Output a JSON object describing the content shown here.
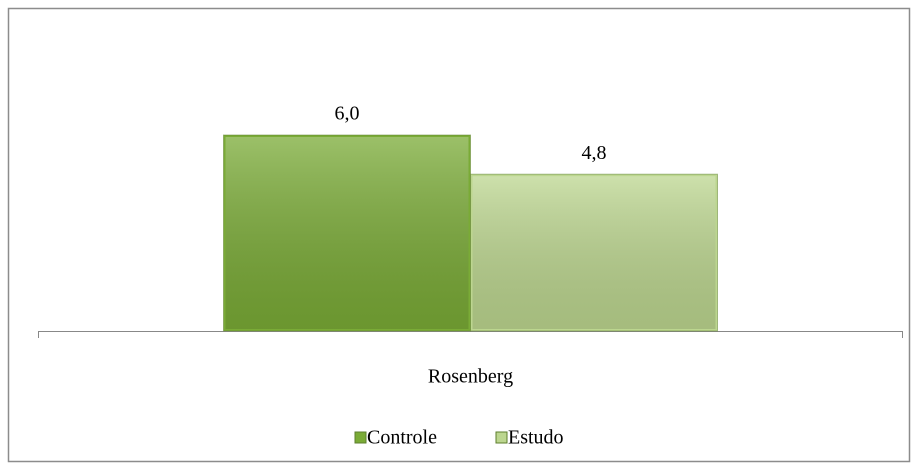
{
  "chart_data": {
    "type": "bar",
    "categories": [
      "Rosenberg"
    ],
    "series": [
      {
        "name": "Controle",
        "color": "#7aab36",
        "values": [
          6.0
        ],
        "value_labels": [
          "6,0"
        ]
      },
      {
        "name": "Estudo",
        "color": "#bcd68f",
        "values": [
          4.8
        ],
        "value_labels": [
          "4,8"
        ]
      }
    ],
    "legend": "bottom",
    "grid": false
  }
}
